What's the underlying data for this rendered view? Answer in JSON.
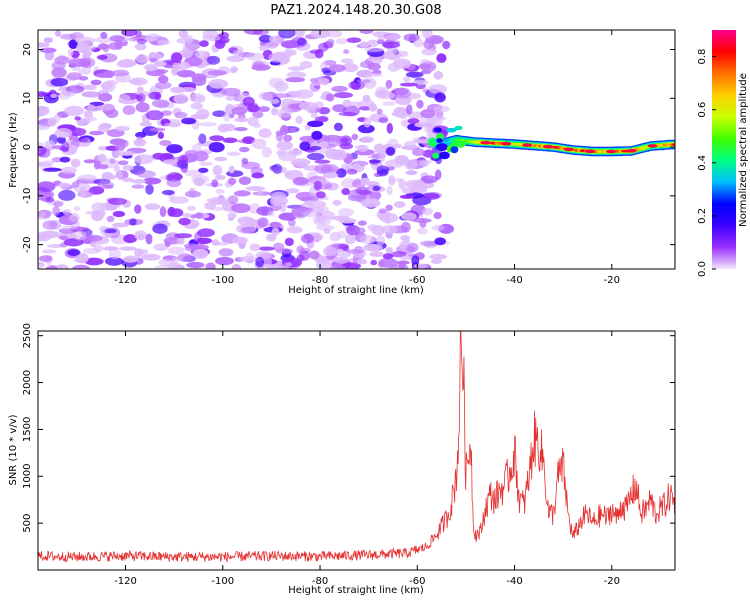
{
  "figure_title": "PAZ1.2024.148.20.30.G08",
  "chart_data": [
    {
      "type": "heatmap",
      "title": "",
      "xlabel": "Height of straight line (km)",
      "ylabel": "Frequency (Hz)",
      "xlim": [
        -138,
        -7
      ],
      "ylim": [
        -25,
        24
      ],
      "xticks": [
        -120,
        -100,
        -80,
        -60,
        -40,
        -20
      ],
      "yticks": [
        -20,
        -10,
        0,
        10,
        20
      ],
      "colorbar": {
        "label": "Normalized spectral amplitude",
        "range": [
          0.0,
          0.9
        ],
        "ticks": [
          0.0,
          0.2,
          0.4,
          0.6,
          0.8
        ],
        "colormap": [
          "#f2e6fb",
          "#9b30ff",
          "#3b00ff",
          "#0000ff",
          "#00bfff",
          "#00ff80",
          "#40ff00",
          "#c8ff00",
          "#ffd000",
          "#ff7000",
          "#ff0000",
          "#ff0090"
        ]
      },
      "noise_region": {
        "x": [
          -138,
          -54
        ],
        "y": [
          -25,
          24
        ],
        "amplitude": [
          0.02,
          0.15
        ]
      },
      "signal_ridge": {
        "x": [
          -56,
          -52,
          -48,
          -44,
          -40,
          -36,
          -32,
          -28,
          -24,
          -20,
          -16,
          -12,
          -8
        ],
        "frequency": [
          0.5,
          1.5,
          1.0,
          0.8,
          0.6,
          0.3,
          0.0,
          -0.6,
          -0.9,
          -0.9,
          -0.8,
          0.2,
          0.5
        ],
        "amplitude": [
          0.3,
          0.45,
          0.6,
          0.75,
          0.55,
          0.65,
          0.8,
          0.7,
          0.75,
          0.6,
          0.8,
          0.55,
          0.75
        ]
      }
    },
    {
      "type": "line",
      "title": "",
      "xlabel": "Height of straight line (km)",
      "ylabel": "SNR (10 * v/v)",
      "xlim": [
        -138,
        -7
      ],
      "ylim": [
        0,
        2550
      ],
      "xticks": [
        -120,
        -100,
        -80,
        -60,
        -40,
        -20
      ],
      "yticks": [
        500,
        1000,
        1500,
        2000,
        2500
      ],
      "series": [
        {
          "color": "#e53030",
          "x": [
            -138,
            -130,
            -120,
            -110,
            -100,
            -90,
            -80,
            -70,
            -62,
            -58,
            -56,
            -54,
            -53,
            -52,
            -51.5,
            -51,
            -50.5,
            -50,
            -49.5,
            -49,
            -48.5,
            -48,
            -47,
            -46,
            -45,
            -44,
            -43,
            -42,
            -41,
            -40,
            -39,
            -38,
            -37,
            -36,
            -35,
            -34,
            -33,
            -32,
            -31,
            -30,
            -29,
            -28,
            -27,
            -26,
            -25,
            -24,
            -23,
            -22,
            -21,
            -20,
            -19,
            -18,
            -17,
            -16,
            -15,
            -14,
            -13,
            -12,
            -11,
            -10,
            -9,
            -8,
            -7
          ],
          "values": [
            150,
            140,
            150,
            140,
            140,
            150,
            145,
            160,
            180,
            250,
            380,
            550,
            700,
            1000,
            1400,
            2500,
            2100,
            1000,
            1200,
            1450,
            500,
            380,
            400,
            650,
            800,
            750,
            850,
            900,
            1050,
            1250,
            750,
            700,
            1000,
            1400,
            1350,
            1150,
            600,
            600,
            1000,
            1100,
            600,
            350,
            450,
            550,
            600,
            500,
            550,
            600,
            550,
            650,
            550,
            700,
            650,
            800,
            900,
            600,
            650,
            750,
            600,
            650,
            700,
            800,
            700
          ]
        }
      ]
    }
  ]
}
